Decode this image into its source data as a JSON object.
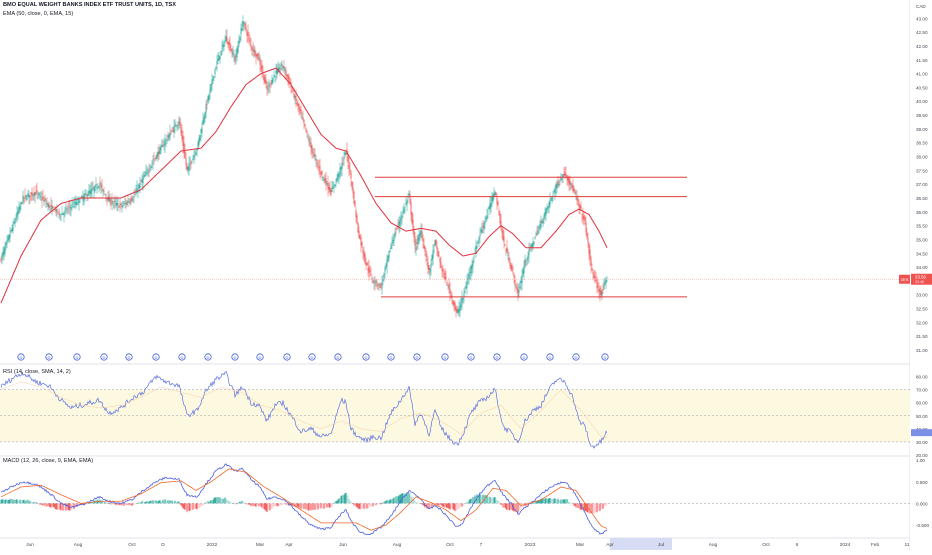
{
  "header": {
    "title": "BMO EQUAL WEIGHT BANKS INDEX ETF TRUST UNITS, 1D, TSX",
    "ema_legend": "EMA (50, close, 0, EMA, 15)",
    "currency": "CAD"
  },
  "rsi_panel": {
    "legend": "RSI (14, close, SMA, 14, 2)"
  },
  "macd_panel": {
    "legend": "MACD (12, 26, close, 9, EMA, EMA)"
  },
  "price_tag": {
    "symbol": "ZEB",
    "value": "33.56",
    "sub": "33.46"
  },
  "colors": {
    "up": "#26a69a",
    "down": "#ef5350",
    "ema": "#e0303d",
    "rsi": "#5b6fe0",
    "macd": "#4b5fe0",
    "signal": "#ef6a2a",
    "band_fill": "#fdf9e1",
    "level_line": "#e03a3a",
    "future_highlight": "#d7dcf5"
  },
  "chart_data": [
    {
      "type": "candlestick",
      "title": "BMO EQUAL WEIGHT BANKS INDEX ETF TRUST UNITS, 1D, TSX",
      "y_axis_ticks": [
        "43.00",
        "42.50",
        "42.00",
        "41.50",
        "41.00",
        "40.50",
        "40.00",
        "39.50",
        "39.00",
        "38.50",
        "38.00",
        "37.50",
        "37.00",
        "36.50",
        "36.00",
        "35.50",
        "35.00",
        "34.50",
        "34.00",
        "33.50",
        "33.00",
        "32.50",
        "32.00",
        "31.50",
        "31.00"
      ],
      "ylim": [
        31.0,
        43.3
      ],
      "x_axis_ticks": [
        "Jun",
        "Aug",
        "Oct",
        "D",
        "2022",
        "Mar",
        "Apr",
        "Jun",
        "Aug",
        "Oct",
        "7",
        "2023",
        "Mar",
        "Apr",
        "Jul",
        "Aug",
        "Oct",
        "6",
        "2024",
        "Feb",
        "11"
      ],
      "dividend_marker_label": "D",
      "horizontal_levels": [
        {
          "value": 37.25,
          "from_index": 374,
          "to_index": 686
        },
        {
          "value": 36.55,
          "from_index": 374,
          "to_index": 686
        },
        {
          "value": 32.92,
          "from_index": 380,
          "to_index": 686
        }
      ],
      "last_price_line": 33.56,
      "price_keypoints": [
        [
          0,
          34.3
        ],
        [
          12,
          35.5
        ],
        [
          22,
          36.5
        ],
        [
          35,
          36.7
        ],
        [
          48,
          36.2
        ],
        [
          60,
          35.9
        ],
        [
          70,
          36.2
        ],
        [
          85,
          36.6
        ],
        [
          98,
          37.0
        ],
        [
          108,
          36.4
        ],
        [
          120,
          36.2
        ],
        [
          132,
          36.5
        ],
        [
          142,
          37.2
        ],
        [
          155,
          38.0
        ],
        [
          165,
          38.6
        ],
        [
          178,
          39.3
        ],
        [
          186,
          37.5
        ],
        [
          196,
          38.3
        ],
        [
          205,
          39.8
        ],
        [
          215,
          41.3
        ],
        [
          225,
          42.3
        ],
        [
          234,
          41.5
        ],
        [
          242,
          42.9
        ],
        [
          250,
          42.0
        ],
        [
          258,
          41.5
        ],
        [
          266,
          40.4
        ],
        [
          274,
          41.0
        ],
        [
          282,
          41.3
        ],
        [
          290,
          40.5
        ],
        [
          300,
          39.5
        ],
        [
          310,
          38.3
        ],
        [
          320,
          37.4
        ],
        [
          330,
          36.7
        ],
        [
          340,
          37.6
        ],
        [
          345,
          38.2
        ],
        [
          350,
          37.2
        ],
        [
          357,
          35.3
        ],
        [
          365,
          34.1
        ],
        [
          372,
          33.5
        ],
        [
          380,
          33.3
        ],
        [
          390,
          34.8
        ],
        [
          398,
          35.6
        ],
        [
          408,
          36.6
        ],
        [
          414,
          34.7
        ],
        [
          420,
          35.3
        ],
        [
          428,
          33.8
        ],
        [
          434,
          34.9
        ],
        [
          440,
          34.0
        ],
        [
          448,
          33.2
        ],
        [
          456,
          32.3
        ],
        [
          462,
          32.9
        ],
        [
          470,
          34.0
        ],
        [
          478,
          35.1
        ],
        [
          486,
          35.9
        ],
        [
          494,
          36.8
        ],
        [
          502,
          35.0
        ],
        [
          510,
          34.0
        ],
        [
          517,
          33.0
        ],
        [
          524,
          34.2
        ],
        [
          532,
          34.9
        ],
        [
          540,
          35.6
        ],
        [
          548,
          36.3
        ],
        [
          556,
          37.0
        ],
        [
          564,
          37.4
        ],
        [
          572,
          36.8
        ],
        [
          578,
          36.2
        ],
        [
          584,
          35.6
        ],
        [
          590,
          34.0
        ],
        [
          596,
          33.3
        ],
        [
          600,
          33.0
        ],
        [
          606,
          33.56
        ]
      ],
      "ema50_keypoints": [
        [
          0,
          32.7
        ],
        [
          20,
          34.4
        ],
        [
          40,
          35.7
        ],
        [
          60,
          36.3
        ],
        [
          80,
          36.5
        ],
        [
          100,
          36.5
        ],
        [
          120,
          36.5
        ],
        [
          140,
          36.8
        ],
        [
          160,
          37.5
        ],
        [
          180,
          38.2
        ],
        [
          200,
          38.3
        ],
        [
          215,
          38.9
        ],
        [
          230,
          39.8
        ],
        [
          245,
          40.6
        ],
        [
          260,
          41.0
        ],
        [
          275,
          41.2
        ],
        [
          290,
          40.6
        ],
        [
          305,
          39.7
        ],
        [
          320,
          38.8
        ],
        [
          335,
          38.3
        ],
        [
          345,
          38.2
        ],
        [
          360,
          37.3
        ],
        [
          375,
          36.3
        ],
        [
          390,
          35.6
        ],
        [
          405,
          35.3
        ],
        [
          420,
          35.4
        ],
        [
          435,
          35.3
        ],
        [
          448,
          34.8
        ],
        [
          462,
          34.4
        ],
        [
          475,
          34.5
        ],
        [
          488,
          35.1
        ],
        [
          500,
          35.5
        ],
        [
          512,
          35.2
        ],
        [
          525,
          34.7
        ],
        [
          540,
          34.7
        ],
        [
          555,
          35.3
        ],
        [
          568,
          35.9
        ],
        [
          578,
          36.1
        ],
        [
          588,
          35.9
        ],
        [
          598,
          35.3
        ],
        [
          606,
          34.7
        ]
      ]
    },
    {
      "type": "line",
      "title": "RSI (14, close, SMA, 14, 2)",
      "y_axis_ticks": [
        "80.00",
        "70.00",
        "60.00",
        "50.00",
        "40.00",
        "30.00",
        "20.00"
      ],
      "ylim": [
        20,
        85
      ],
      "band": [
        30,
        70
      ],
      "rsi_keypoints": [
        [
          0,
          72
        ],
        [
          12,
          79
        ],
        [
          22,
          83
        ],
        [
          35,
          76
        ],
        [
          48,
          73
        ],
        [
          60,
          62
        ],
        [
          70,
          56
        ],
        [
          85,
          59
        ],
        [
          98,
          62
        ],
        [
          108,
          52
        ],
        [
          120,
          56
        ],
        [
          132,
          64
        ],
        [
          142,
          68
        ],
        [
          155,
          80
        ],
        [
          165,
          76
        ],
        [
          178,
          73
        ],
        [
          186,
          50
        ],
        [
          196,
          54
        ],
        [
          205,
          69
        ],
        [
          215,
          78
        ],
        [
          225,
          82
        ],
        [
          234,
          66
        ],
        [
          242,
          72
        ],
        [
          250,
          60
        ],
        [
          258,
          58
        ],
        [
          266,
          46
        ],
        [
          274,
          58
        ],
        [
          282,
          60
        ],
        [
          290,
          50
        ],
        [
          300,
          38
        ],
        [
          310,
          40
        ],
        [
          320,
          34
        ],
        [
          330,
          36
        ],
        [
          340,
          62
        ],
        [
          345,
          60
        ],
        [
          350,
          40
        ],
        [
          357,
          34
        ],
        [
          365,
          31
        ],
        [
          372,
          34
        ],
        [
          380,
          33
        ],
        [
          390,
          52
        ],
        [
          398,
          60
        ],
        [
          408,
          72
        ],
        [
          414,
          44
        ],
        [
          420,
          52
        ],
        [
          428,
          36
        ],
        [
          434,
          54
        ],
        [
          440,
          41
        ],
        [
          448,
          33
        ],
        [
          456,
          28
        ],
        [
          462,
          36
        ],
        [
          470,
          52
        ],
        [
          478,
          60
        ],
        [
          486,
          64
        ],
        [
          494,
          70
        ],
        [
          502,
          42
        ],
        [
          510,
          37
        ],
        [
          517,
          30
        ],
        [
          524,
          46
        ],
        [
          532,
          54
        ],
        [
          540,
          58
        ],
        [
          548,
          70
        ],
        [
          556,
          78
        ],
        [
          564,
          76
        ],
        [
          572,
          64
        ],
        [
          578,
          46
        ],
        [
          584,
          42
        ],
        [
          590,
          26
        ],
        [
          596,
          28
        ],
        [
          600,
          30
        ],
        [
          606,
          38
        ]
      ],
      "rsi_ma_keypoints": [
        [
          0,
          70
        ],
        [
          20,
          76
        ],
        [
          40,
          72
        ],
        [
          60,
          64
        ],
        [
          80,
          58
        ],
        [
          100,
          56
        ],
        [
          120,
          58
        ],
        [
          140,
          64
        ],
        [
          160,
          72
        ],
        [
          180,
          68
        ],
        [
          200,
          64
        ],
        [
          220,
          72
        ],
        [
          240,
          68
        ],
        [
          260,
          58
        ],
        [
          280,
          54
        ],
        [
          300,
          46
        ],
        [
          320,
          40
        ],
        [
          340,
          46
        ],
        [
          360,
          40
        ],
        [
          380,
          38
        ],
        [
          400,
          48
        ],
        [
          420,
          52
        ],
        [
          440,
          46
        ],
        [
          460,
          36
        ],
        [
          480,
          52
        ],
        [
          500,
          58
        ],
        [
          520,
          40
        ],
        [
          540,
          54
        ],
        [
          560,
          70
        ],
        [
          580,
          54
        ],
        [
          600,
          34
        ],
        [
          606,
          33
        ]
      ]
    },
    {
      "type": "bar",
      "title": "MACD (12, 26, close, 9, EMA, EMA)",
      "y_axis_ticks": [
        "1.00",
        "0.500",
        "0.000",
        "-0.500"
      ],
      "ylim": [
        -0.8,
        1.05
      ],
      "macd_keypoints": [
        [
          0,
          0.25
        ],
        [
          12,
          0.4
        ],
        [
          22,
          0.5
        ],
        [
          35,
          0.45
        ],
        [
          48,
          0.25
        ],
        [
          60,
          0.0
        ],
        [
          70,
          -0.1
        ],
        [
          85,
          0.0
        ],
        [
          98,
          0.15
        ],
        [
          108,
          0.05
        ],
        [
          120,
          0.0
        ],
        [
          132,
          0.1
        ],
        [
          142,
          0.3
        ],
        [
          155,
          0.5
        ],
        [
          165,
          0.6
        ],
        [
          178,
          0.55
        ],
        [
          186,
          0.2
        ],
        [
          196,
          0.15
        ],
        [
          205,
          0.45
        ],
        [
          215,
          0.75
        ],
        [
          225,
          0.9
        ],
        [
          234,
          0.75
        ],
        [
          242,
          0.8
        ],
        [
          250,
          0.55
        ],
        [
          258,
          0.4
        ],
        [
          266,
          0.1
        ],
        [
          274,
          0.15
        ],
        [
          282,
          0.1
        ],
        [
          290,
          -0.05
        ],
        [
          300,
          -0.3
        ],
        [
          310,
          -0.5
        ],
        [
          320,
          -0.6
        ],
        [
          330,
          -0.55
        ],
        [
          340,
          -0.25
        ],
        [
          345,
          -0.15
        ],
        [
          350,
          -0.4
        ],
        [
          357,
          -0.62
        ],
        [
          365,
          -0.72
        ],
        [
          372,
          -0.68
        ],
        [
          380,
          -0.55
        ],
        [
          390,
          -0.3
        ],
        [
          398,
          0.0
        ],
        [
          408,
          0.3
        ],
        [
          414,
          0.2
        ],
        [
          420,
          0.1
        ],
        [
          428,
          -0.15
        ],
        [
          434,
          -0.05
        ],
        [
          440,
          -0.15
        ],
        [
          448,
          -0.35
        ],
        [
          456,
          -0.55
        ],
        [
          462,
          -0.45
        ],
        [
          470,
          -0.1
        ],
        [
          478,
          0.2
        ],
        [
          486,
          0.4
        ],
        [
          494,
          0.55
        ],
        [
          502,
          0.2
        ],
        [
          510,
          0.0
        ],
        [
          517,
          -0.25
        ],
        [
          524,
          -0.1
        ],
        [
          532,
          0.05
        ],
        [
          540,
          0.2
        ],
        [
          548,
          0.35
        ],
        [
          556,
          0.45
        ],
        [
          564,
          0.5
        ],
        [
          572,
          0.3
        ],
        [
          578,
          0.05
        ],
        [
          584,
          -0.2
        ],
        [
          590,
          -0.5
        ],
        [
          596,
          -0.65
        ],
        [
          600,
          -0.72
        ],
        [
          606,
          -0.62
        ]
      ],
      "signal_keypoints": [
        [
          0,
          0.15
        ],
        [
          20,
          0.38
        ],
        [
          40,
          0.42
        ],
        [
          60,
          0.2
        ],
        [
          80,
          0.0
        ],
        [
          100,
          0.05
        ],
        [
          120,
          0.05
        ],
        [
          140,
          0.22
        ],
        [
          160,
          0.48
        ],
        [
          180,
          0.52
        ],
        [
          195,
          0.3
        ],
        [
          210,
          0.5
        ],
        [
          228,
          0.8
        ],
        [
          245,
          0.72
        ],
        [
          262,
          0.4
        ],
        [
          280,
          0.15
        ],
        [
          300,
          -0.15
        ],
        [
          320,
          -0.45
        ],
        [
          340,
          -0.45
        ],
        [
          355,
          -0.45
        ],
        [
          370,
          -0.62
        ],
        [
          385,
          -0.5
        ],
        [
          400,
          -0.2
        ],
        [
          415,
          0.15
        ],
        [
          430,
          0.02
        ],
        [
          445,
          -0.15
        ],
        [
          460,
          -0.4
        ],
        [
          475,
          -0.15
        ],
        [
          492,
          0.35
        ],
        [
          505,
          0.3
        ],
        [
          520,
          -0.05
        ],
        [
          540,
          0.08
        ],
        [
          560,
          0.38
        ],
        [
          575,
          0.3
        ],
        [
          590,
          -0.2
        ],
        [
          600,
          -0.52
        ],
        [
          606,
          -0.58
        ]
      ]
    }
  ]
}
